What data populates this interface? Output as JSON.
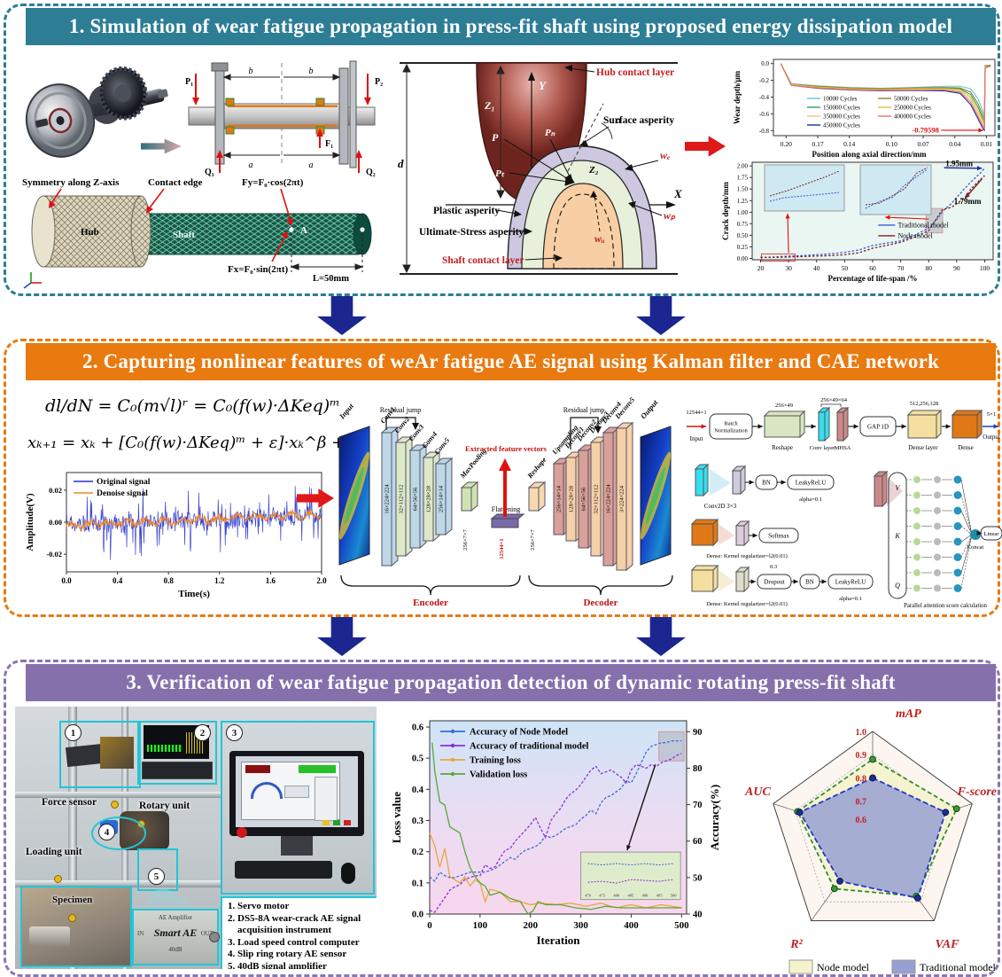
{
  "s1": {
    "banner": "1. Simulation of wear fatigue propagation in press-fit shaft using proposed energy dissipation model",
    "banner_color": "#2d7d95",
    "schematic": {
      "p1": "P₁",
      "p2": "P₂",
      "q1": "Q₁",
      "q2": "Q₂",
      "f1": "F₁",
      "a1": "a",
      "a2": "a",
      "b1": "b",
      "b2": "b"
    },
    "mesh": {
      "symmetry": "Symmetry along Z-axis",
      "contact_edge": "Contact edge",
      "hub": "Hub",
      "shaft": "Shaft",
      "fy": "Fy=F₀·cos(2πt)",
      "fx": "Fx=F₀·sin(2πt)",
      "len": "L=50mm",
      "point_a": "A"
    },
    "asperity": {
      "hub_layer": "Hub contact layer",
      "surface": "Surface asperity",
      "plastic": "Plastic asperity",
      "ultimate": "Ultimate-Stress asperity",
      "shaft_layer": "Shaft contact layer",
      "z1": "Z₁",
      "z2": "Z₂",
      "axis_x": "X",
      "axis_y": "Y",
      "d": "d",
      "alpha": "α",
      "p": "P",
      "pn": "Pₙ",
      "pt": "Pₜ",
      "we": "wₑ",
      "wp": "wₚ",
      "wu": "wᵤ"
    }
  },
  "s2": {
    "banner": "2. Capturing nonlinear features of weAr fatigue AE signal using Kalman filter and CAE network",
    "banner_color": "#e87a10",
    "eq1": "dl/dN = C₀(m√l)ʳ = C₀(f(w)·ΔKeq)ᵐ",
    "eq2": "xₖ₊₁ = xₖ + [C₀(f(w)·ΔKeq)ᵐ + ε]·xₖ^β + wₖ",
    "cae": {
      "residual": "Residual jump",
      "extracted": "Extracted feature vectors",
      "flattening": "Flattening",
      "encoder": "Encoder",
      "decoder": "Decoder",
      "input": "Input",
      "output": "Output",
      "layers": [
        {
          "name": "Conv1",
          "size": "16×224×224"
        },
        {
          "name": "Conv2",
          "size": "32×112×112"
        },
        {
          "name": "Conv3",
          "size": "64×56×56"
        },
        {
          "name": "Conv4",
          "size": "128×28×28"
        },
        {
          "name": "Conv5",
          "size": "256×14×14"
        },
        {
          "name": "MaxPooling",
          "size": "256×7×7"
        },
        {
          "name": "Flattening",
          "size": "12544×1"
        },
        {
          "name": "Reshape",
          "size": "256×7×7"
        },
        {
          "name": "Upsampling",
          "size": "256×14×14"
        },
        {
          "name": "Deconv1",
          "size": "128×28×28"
        },
        {
          "name": "Deconv2",
          "size": "64×56×56"
        },
        {
          "name": "Deconv3",
          "size": "32×112×112"
        },
        {
          "name": "Deconv4",
          "size": "16×224×224"
        },
        {
          "name": "Deconv5",
          "size": "3×224×224"
        }
      ]
    },
    "pipeline": {
      "input_size": "12544×1",
      "input": "Input",
      "bn": "Batch Normalization",
      "reshape": "Reshape",
      "reshape_size": "256×49",
      "conv": "Conv layer",
      "mhsa": "MHSA",
      "conv_size": "256×49×64",
      "gap": "GAP 1D",
      "dense_layer": "Dense layer",
      "dense_size": "512,256,128",
      "dense": "Dense",
      "out_size": "5×1",
      "output": "Output",
      "conv2d": "Conv2D 3×3",
      "bn2": "BN",
      "lrelu": "LeakyReLU",
      "alpha": "alpha=0.1",
      "softmax": "Softmax",
      "reg1": "Dense: Kernel regularizer=l2(0.01)",
      "drop_rate": "0.3",
      "dropout": "Dropout",
      "bn3": "BN",
      "lrelu2": "LeakyReLU",
      "alpha2": "alpha=0.1",
      "reg2": "Dense: Kernel regularizer=l2(0.01)",
      "v": "V",
      "k": "K",
      "q": "Q",
      "concat": "Concat",
      "linear": "Linear",
      "attention": "Parallel attention score calculation"
    }
  },
  "s3": {
    "banner": "3. Verification of wear fatigue propagation detection of dynamic rotating press-fit shaft",
    "banner_color": "#8570ac",
    "photo": {
      "badges": [
        "1",
        "2",
        "3",
        "4",
        "5"
      ],
      "force_sensor": "Force sensor",
      "rotary_unit": "Rotary unit",
      "loading_unit": "Loading unit",
      "specimen": "Specimen",
      "amp_top": "AE Amplifier",
      "amp_in": "IN",
      "amp_main": "Smart AE",
      "amp_out": "OUT",
      "amp_bottom": "40dB",
      "items": [
        "1. Servo motor",
        "2. DS5-8A wear-crack AE signal acquisition instrument",
        "3. Load speed control computer",
        "4. Slip ring rotary AE sensor",
        "5. 40dB signal amplifier"
      ]
    }
  },
  "chart_data": [
    {
      "id": "wear",
      "type": "line",
      "xlabel": "Position along axial direction/mm",
      "ylabel": "Wear depth/μm",
      "x_reversed": true,
      "x_ticks": [
        "0.20",
        "0.17",
        "0.14",
        "0.10",
        "0.07",
        "0.04",
        "0.01"
      ],
      "x_tick_vals": [
        0.2,
        0.17,
        0.14,
        0.1,
        0.07,
        0.04,
        0.01
      ],
      "y_ticks": [
        "0.0",
        "-0.2",
        "-0.4",
        "-0.6",
        "-0.8"
      ],
      "y_tick_vals": [
        0.0,
        -0.2,
        -0.4,
        -0.6,
        -0.8
      ],
      "annotation": "-0.79598",
      "x": [
        0.205,
        0.195,
        0.17,
        0.14,
        0.11,
        0.08,
        0.05,
        0.035,
        0.025,
        0.018,
        0.014,
        0.012,
        0.0112,
        0.006
      ],
      "series": [
        {
          "name": "10000  Cycles",
          "color": "#5ec8ea",
          "values": [
            0,
            -0.24,
            -0.265,
            -0.285,
            -0.295,
            -0.285,
            -0.27,
            -0.27,
            -0.3,
            -0.42,
            -0.55,
            -0.62,
            -0.02,
            -0.02
          ]
        },
        {
          "name": "150000 Cycles",
          "color": "#2f9e5f",
          "values": [
            0,
            -0.25,
            -0.275,
            -0.295,
            -0.305,
            -0.295,
            -0.29,
            -0.3,
            -0.37,
            -0.52,
            -0.64,
            -0.69,
            -0.03,
            -0.02
          ]
        },
        {
          "name": "350000 Cycles",
          "color": "#e6c488",
          "values": [
            0,
            -0.255,
            -0.285,
            -0.305,
            -0.315,
            -0.305,
            -0.305,
            -0.325,
            -0.43,
            -0.6,
            -0.7,
            -0.74,
            -0.04,
            -0.03
          ]
        },
        {
          "name": "450000 Cycles",
          "color": "#1c2e9e",
          "values": [
            0,
            -0.26,
            -0.295,
            -0.315,
            -0.325,
            -0.32,
            -0.325,
            -0.355,
            -0.49,
            -0.66,
            -0.76,
            -0.796,
            -0.05,
            -0.03
          ]
        },
        {
          "name": "50000 Cycles",
          "color": "#97801f",
          "values": [
            0,
            -0.245,
            -0.27,
            -0.29,
            -0.3,
            -0.29,
            -0.285,
            -0.29,
            -0.34,
            -0.48,
            -0.6,
            -0.66,
            -0.03,
            -0.02
          ]
        },
        {
          "name": "250000 Cycles",
          "color": "#d8c43c",
          "values": [
            0,
            -0.25,
            -0.28,
            -0.3,
            -0.31,
            -0.3,
            -0.3,
            -0.31,
            -0.4,
            -0.56,
            -0.67,
            -0.72,
            -0.04,
            -0.03
          ]
        },
        {
          "name": "400000 Cycles",
          "color": "#f26d6d",
          "values": [
            0,
            -0.26,
            -0.29,
            -0.31,
            -0.32,
            -0.315,
            -0.315,
            -0.34,
            -0.46,
            -0.63,
            -0.73,
            -0.77,
            -0.05,
            -0.03
          ]
        }
      ]
    },
    {
      "id": "crack",
      "type": "line",
      "xlabel": "Percentage of life-span /%",
      "ylabel": "Crack depth/mm",
      "x_ticks": [
        "20",
        "30",
        "40",
        "50",
        "60",
        "70",
        "80",
        "90",
        "100"
      ],
      "x_tick_vals": [
        20,
        30,
        40,
        50,
        60,
        70,
        80,
        90,
        100
      ],
      "y_ticks": [
        "0.00",
        "0.25",
        "0.50",
        "0.75",
        "1.00",
        "1.25",
        "1.50",
        "1.75",
        "2.00"
      ],
      "y_tick_vals": [
        0,
        0.25,
        0.5,
        0.75,
        1.0,
        1.25,
        1.5,
        1.75,
        2.0
      ],
      "x": [
        20,
        25,
        30,
        35,
        40,
        45,
        50,
        55,
        60,
        65,
        70,
        75,
        80,
        83,
        85,
        88,
        90,
        93,
        95,
        98,
        100
      ],
      "series": [
        {
          "name": "Traditional model",
          "color": "#3b5bd6",
          "values": [
            0.02,
            0.03,
            0.05,
            0.06,
            0.08,
            0.1,
            0.13,
            0.18,
            0.28,
            0.33,
            0.38,
            0.5,
            0.66,
            0.85,
            1.02,
            1.18,
            1.32,
            1.52,
            1.65,
            1.82,
            1.95
          ]
        },
        {
          "name": "Node model",
          "color": "#7a1f1f",
          "values": [
            0.02,
            0.02,
            0.03,
            0.04,
            0.05,
            0.06,
            0.08,
            0.12,
            0.22,
            0.28,
            0.35,
            0.46,
            0.6,
            0.88,
            1.06,
            1.1,
            1.18,
            1.32,
            1.5,
            1.68,
            1.79
          ]
        }
      ],
      "annotations": [
        {
          "text": "1.95mm",
          "color": "#1c2e9e"
        },
        {
          "text": "1.79mm",
          "color": "#7a1f1f"
        }
      ]
    },
    {
      "id": "signal",
      "type": "line",
      "xlabel": "Time(s)",
      "ylabel": "Amplitude(V)",
      "x_ticks": [
        "0.0",
        "0.4",
        "0.8",
        "1.2",
        "1.6",
        "2.0"
      ],
      "x_tick_vals": [
        0,
        0.4,
        0.8,
        1.2,
        1.6,
        2.0
      ],
      "y_ticks": [
        "0.02",
        "0.00",
        "-0.02"
      ],
      "y_tick_vals": [
        0.02,
        0.0,
        -0.02
      ],
      "xlim": [
        0,
        2
      ],
      "ylim": [
        -0.031,
        0.031
      ],
      "legend": [
        {
          "name": "Original signal",
          "color": "#2730c8"
        },
        {
          "name": "Denoise signal",
          "color": "#f08828"
        }
      ]
    },
    {
      "id": "loss",
      "type": "line",
      "xlabel": "Iteration",
      "ylabel_left": "Loss value",
      "ylabel_right": "Accuracy(%)",
      "x_ticks": [
        "0",
        "100",
        "200",
        "300",
        "400",
        "500"
      ],
      "x_tick_vals": [
        0,
        100,
        200,
        300,
        400,
        500
      ],
      "yl_ticks": [
        "0.0",
        "0.1",
        "0.2",
        "0.3",
        "0.4",
        "0.5",
        "0.6"
      ],
      "yl_tick_vals": [
        0,
        0.1,
        0.2,
        0.3,
        0.4,
        0.5,
        0.6
      ],
      "yr_ticks": [
        "40",
        "50",
        "60",
        "70",
        "80",
        "90"
      ],
      "yr_tick_vals": [
        40,
        50,
        60,
        70,
        80,
        90
      ],
      "inset_x_ticks": [
        "470",
        "475",
        "480",
        "485",
        "490",
        "495",
        "500"
      ],
      "legend": [
        {
          "name": "Accuracy of Node Model",
          "color": "#3b6bd6"
        },
        {
          "name": "Accuracy of traditional model",
          "color": "#8830d8"
        },
        {
          "name": "Training loss",
          "color": "#e8a838"
        },
        {
          "name": "Validation loss",
          "color": "#58a838"
        }
      ],
      "x_acc": [
        0,
        10,
        20,
        30,
        40,
        50,
        60,
        70,
        80,
        90,
        100,
        110,
        120,
        130,
        140,
        150,
        160,
        170,
        180,
        190,
        200,
        210,
        220,
        230,
        240,
        250,
        260,
        270,
        280,
        290,
        300,
        310,
        320,
        330,
        340,
        350,
        360,
        370,
        380,
        390,
        400,
        410,
        420,
        430,
        440,
        450,
        460,
        470,
        480,
        490,
        500
      ],
      "acc_node": [
        50.2,
        49.0,
        51.5,
        50.5,
        50.0,
        50.0,
        50.5,
        51.0,
        51.5,
        51.5,
        51.5,
        51.5,
        52.0,
        52.5,
        53.5,
        54.5,
        55.5,
        55.0,
        56.5,
        57.5,
        58.0,
        58.5,
        59.5,
        61.5,
        61.0,
        61.5,
        62.5,
        63.5,
        64.0,
        64.5,
        66.0,
        67.0,
        68.5,
        67.5,
        70.5,
        72.0,
        72.5,
        73.5,
        74.5,
        76.5,
        76.0,
        78.5,
        81.5,
        84.5,
        86.0,
        86.5,
        87.0,
        87.0,
        87.5,
        87.5,
        87.5
      ],
      "acc_trad": [
        41,
        40.5,
        42.5,
        44.5,
        46.5,
        47.5,
        48.0,
        49.5,
        50.0,
        50.5,
        50.5,
        53.5,
        52.5,
        53.0,
        55.5,
        57.5,
        58.0,
        60.0,
        61.5,
        63.0,
        64.5,
        66.5,
        63.5,
        61.0,
        65.5,
        67.5,
        69.0,
        71.5,
        73.0,
        74.0,
        75.5,
        77.5,
        79.5,
        80.5,
        78.5,
        79.0,
        79.5,
        78.5,
        77.5,
        76.0,
        79.5,
        81.0,
        80.5,
        80.0,
        81.0,
        80.5,
        81.5,
        82.0,
        82.5,
        83.5,
        84.0
      ],
      "x_train": [
        0,
        10,
        20,
        30,
        40,
        50,
        60,
        70,
        80,
        90,
        100,
        110,
        120,
        140,
        160,
        180,
        200,
        220,
        250,
        280,
        310,
        340,
        370,
        400,
        430,
        460,
        500
      ],
      "train_loss": [
        0.26,
        0.22,
        0.15,
        0.21,
        0.12,
        0.11,
        0.1,
        0.12,
        0.09,
        0.11,
        0.1,
        0.04,
        0.08,
        0.07,
        0.04,
        0.04,
        0.03,
        0.035,
        0.03,
        0.035,
        0.025,
        0.035,
        0.02,
        0.03,
        0.02,
        0.03,
        0.02
      ],
      "x_val": [
        5,
        10,
        15,
        20,
        30,
        40,
        50,
        60,
        70,
        80,
        90,
        100,
        110,
        120,
        140,
        160,
        180,
        195,
        205,
        215,
        230,
        260,
        290,
        320,
        350,
        380,
        410,
        440,
        470,
        500
      ],
      "val_loss": [
        0.55,
        0.46,
        0.41,
        0.36,
        0.35,
        0.28,
        0.27,
        0.26,
        0.2,
        0.15,
        0.12,
        0.1,
        0.09,
        0.06,
        0.07,
        0.05,
        0.04,
        0.0,
        0.01,
        0.04,
        0.03,
        0.03,
        0.02,
        0.015,
        0.025,
        0.02,
        0.02,
        0.02,
        0.02,
        0.02
      ]
    },
    {
      "id": "radar",
      "type": "radar",
      "axes": [
        "mAP",
        "F-score",
        "VAF",
        "R²",
        "AUC"
      ],
      "ring_labels": [
        "1.0",
        "0.9",
        "0.8",
        "0.7",
        "0.6"
      ],
      "ring_vals": [
        1.0,
        0.9,
        0.8,
        0.7,
        0.6
      ],
      "series": [
        {
          "name": "Node model",
          "fill": "#f6f2cd",
          "stroke": "#2f8f2f",
          "values": [
            0.88,
            0.93,
            0.87,
            0.83,
            0.89
          ]
        },
        {
          "name": "Traditional model",
          "fill": "#97a0d2",
          "stroke": "#2437c8",
          "values": [
            0.8,
            0.88,
            0.88,
            0.79,
            0.88
          ]
        }
      ]
    }
  ]
}
